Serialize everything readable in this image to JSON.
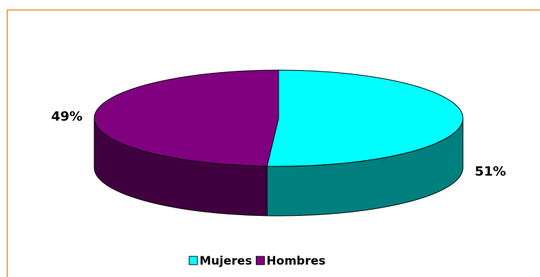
{
  "chart_data": {
    "type": "pie",
    "categories": [
      "Mujeres",
      "Hombres"
    ],
    "values": [
      51,
      49
    ],
    "value_labels": [
      "51%",
      "49%"
    ],
    "colors": [
      "#00ffff",
      "#800080"
    ]
  }
}
